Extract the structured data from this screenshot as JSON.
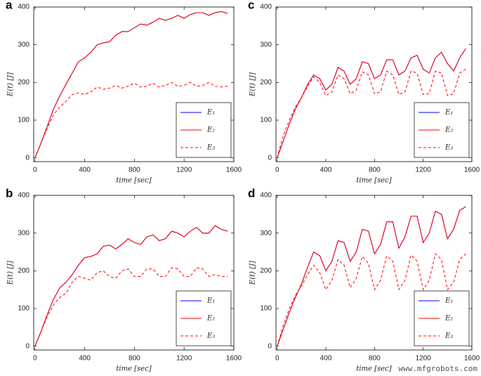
{
  "chart_data": [
    {
      "type": "line",
      "panel": "a",
      "xlabel": "time [sec]",
      "ylabel": "E(t) [J]",
      "xlim": [
        -10,
        1600
      ],
      "xticks": [
        0,
        400,
        800,
        1200,
        1600
      ],
      "ylim": [
        -10,
        400
      ],
      "yticks": [
        0,
        100,
        200,
        300,
        400
      ],
      "legend": "lower right",
      "x": [
        0,
        50,
        100,
        150,
        200,
        250,
        300,
        350,
        400,
        450,
        500,
        550,
        600,
        650,
        700,
        750,
        800,
        850,
        900,
        950,
        1000,
        1050,
        1100,
        1150,
        1200,
        1250,
        1300,
        1350,
        1400,
        1450,
        1500,
        1550
      ],
      "series": [
        {
          "name": "E₁",
          "color": "#0000ff",
          "dash": false,
          "values": [
            0,
            40,
            85,
            130,
            165,
            195,
            225,
            255,
            265,
            280,
            300,
            305,
            308,
            325,
            335,
            335,
            345,
            355,
            352,
            360,
            370,
            365,
            370,
            378,
            370,
            380,
            385,
            385,
            378,
            385,
            388,
            383
          ]
        },
        {
          "name": "E₂",
          "color": "#ff0000",
          "dash": false,
          "values": [
            0,
            40,
            85,
            130,
            165,
            195,
            225,
            255,
            265,
            280,
            300,
            305,
            308,
            325,
            335,
            335,
            345,
            355,
            352,
            360,
            370,
            365,
            370,
            378,
            370,
            380,
            385,
            385,
            378,
            385,
            388,
            383
          ]
        },
        {
          "name": "E₃",
          "color": "#ff0000",
          "dash": true,
          "values": [
            0,
            40,
            80,
            115,
            135,
            150,
            168,
            172,
            168,
            175,
            188,
            182,
            185,
            192,
            185,
            190,
            198,
            188,
            190,
            198,
            188,
            192,
            200,
            190,
            192,
            200,
            190,
            192,
            200,
            190,
            188,
            190
          ]
        }
      ]
    },
    {
      "type": "line",
      "panel": "b",
      "xlabel": "time [sec]",
      "ylabel": "E(t) [J]",
      "xlim": [
        -10,
        1600
      ],
      "xticks": [
        0,
        400,
        800,
        1200,
        1600
      ],
      "ylim": [
        -10,
        400
      ],
      "yticks": [
        0,
        100,
        200,
        300,
        400
      ],
      "legend": "lower right",
      "x": [
        0,
        50,
        100,
        150,
        200,
        250,
        300,
        350,
        400,
        450,
        500,
        550,
        600,
        650,
        700,
        750,
        800,
        850,
        900,
        950,
        1000,
        1050,
        1100,
        1150,
        1200,
        1250,
        1300,
        1350,
        1400,
        1450,
        1500,
        1550
      ],
      "series": [
        {
          "name": "E₁",
          "color": "#0000ff",
          "dash": false,
          "values": [
            0,
            40,
            85,
            125,
            155,
            170,
            190,
            215,
            235,
            238,
            245,
            265,
            268,
            258,
            270,
            285,
            275,
            270,
            290,
            295,
            280,
            285,
            305,
            300,
            290,
            305,
            315,
            300,
            300,
            320,
            310,
            305
          ]
        },
        {
          "name": "E₂",
          "color": "#ff0000",
          "dash": false,
          "values": [
            0,
            40,
            85,
            125,
            155,
            170,
            190,
            215,
            235,
            238,
            245,
            265,
            268,
            258,
            270,
            285,
            275,
            270,
            290,
            295,
            280,
            285,
            305,
            300,
            290,
            305,
            315,
            300,
            300,
            320,
            310,
            305
          ]
        },
        {
          "name": "E₃",
          "color": "#ff0000",
          "dash": true,
          "values": [
            0,
            40,
            80,
            110,
            130,
            140,
            170,
            185,
            180,
            175,
            195,
            200,
            185,
            180,
            200,
            205,
            185,
            185,
            205,
            205,
            185,
            185,
            208,
            205,
            185,
            185,
            208,
            205,
            185,
            190,
            185,
            185
          ]
        }
      ]
    },
    {
      "type": "line",
      "panel": "c",
      "xlabel": "time [sec]",
      "ylabel": "E(t) [J]",
      "xlim": [
        -10,
        1600
      ],
      "xticks": [
        0,
        400,
        800,
        1200,
        1600
      ],
      "ylim": [
        -10,
        400
      ],
      "yticks": [
        0,
        100,
        200,
        300,
        400
      ],
      "legend": "lower right",
      "x": [
        0,
        50,
        100,
        150,
        200,
        250,
        300,
        350,
        400,
        450,
        500,
        550,
        600,
        650,
        700,
        750,
        800,
        850,
        900,
        950,
        1000,
        1050,
        1100,
        1150,
        1200,
        1250,
        1300,
        1350,
        1400,
        1450,
        1500,
        1550
      ],
      "series": [
        {
          "name": "E₁",
          "color": "#0000ff",
          "dash": false,
          "values": [
            0,
            45,
            90,
            130,
            160,
            195,
            220,
            210,
            180,
            195,
            240,
            230,
            195,
            210,
            255,
            250,
            210,
            220,
            260,
            260,
            220,
            230,
            265,
            272,
            235,
            225,
            265,
            280,
            250,
            230,
            265,
            290
          ]
        },
        {
          "name": "E₂",
          "color": "#ff0000",
          "dash": false,
          "values": [
            0,
            45,
            90,
            130,
            160,
            195,
            220,
            210,
            180,
            195,
            240,
            230,
            195,
            210,
            255,
            250,
            210,
            220,
            260,
            260,
            220,
            230,
            265,
            272,
            235,
            225,
            265,
            280,
            250,
            230,
            265,
            290
          ]
        },
        {
          "name": "E₃",
          "color": "#ff0000",
          "dash": true,
          "values": [
            0,
            60,
            100,
            135,
            160,
            190,
            215,
            200,
            165,
            175,
            220,
            210,
            170,
            180,
            228,
            220,
            170,
            175,
            230,
            220,
            168,
            175,
            230,
            225,
            168,
            170,
            230,
            225,
            165,
            170,
            225,
            235
          ]
        }
      ]
    },
    {
      "type": "line",
      "panel": "d",
      "xlabel": "time [sec]",
      "ylabel": "E(t) [J]",
      "xlim": [
        -10,
        1600
      ],
      "xticks": [
        0,
        400,
        800,
        1200,
        1600
      ],
      "ylim": [
        -10,
        400
      ],
      "yticks": [
        0,
        100,
        200,
        300,
        400
      ],
      "legend": "lower right",
      "x": [
        0,
        50,
        100,
        150,
        200,
        250,
        300,
        350,
        400,
        450,
        500,
        550,
        600,
        650,
        700,
        750,
        800,
        850,
        900,
        950,
        1000,
        1050,
        1100,
        1150,
        1200,
        1250,
        1300,
        1350,
        1400,
        1450,
        1500,
        1550
      ],
      "series": [
        {
          "name": "E₁",
          "color": "#0000ff",
          "dash": false,
          "values": [
            0,
            45,
            90,
            130,
            165,
            210,
            250,
            240,
            200,
            225,
            280,
            275,
            225,
            250,
            310,
            305,
            245,
            270,
            330,
            330,
            260,
            290,
            345,
            345,
            275,
            300,
            358,
            350,
            285,
            310,
            360,
            370
          ]
        },
        {
          "name": "E₂",
          "color": "#ff0000",
          "dash": false,
          "values": [
            0,
            45,
            90,
            130,
            165,
            210,
            250,
            240,
            200,
            225,
            280,
            275,
            225,
            250,
            310,
            305,
            245,
            270,
            330,
            330,
            260,
            290,
            345,
            345,
            275,
            300,
            358,
            350,
            285,
            310,
            360,
            370
          ]
        },
        {
          "name": "E₃",
          "color": "#ff0000",
          "dash": true,
          "values": [
            0,
            55,
            100,
            135,
            160,
            190,
            215,
            195,
            150,
            175,
            230,
            215,
            155,
            180,
            238,
            220,
            150,
            175,
            240,
            225,
            150,
            175,
            242,
            225,
            150,
            175,
            245,
            230,
            150,
            170,
            230,
            245
          ]
        }
      ]
    }
  ],
  "watermark": "www.mfgrobots.com"
}
